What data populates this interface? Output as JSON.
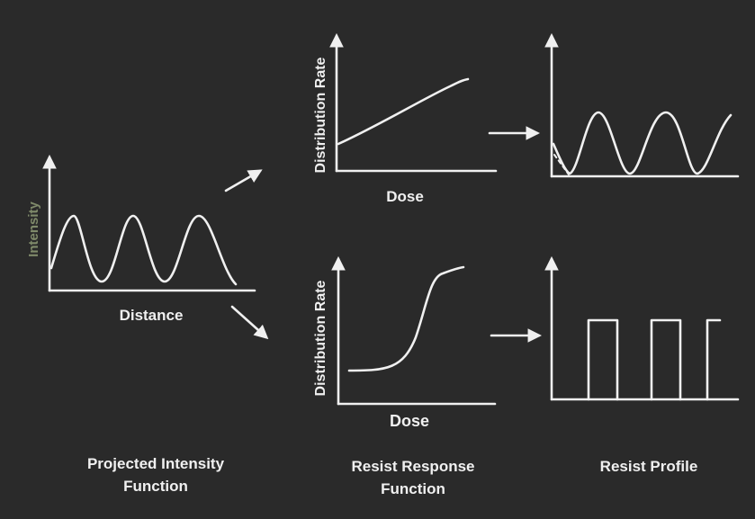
{
  "colors": {
    "background": "#2a2a2a",
    "stroke": "#f0f0f0",
    "ylabel_intensity": "#7f8a6a"
  },
  "intensity_panel": {
    "ylabel": "Intensity",
    "xlabel": "Distance"
  },
  "response_panels": [
    {
      "ylabel": "Distribution Rate",
      "xlabel": "Dose"
    },
    {
      "ylabel": "Distribution Rate",
      "xlabel": "Dose"
    }
  ],
  "captions": {
    "intensity": [
      "Projected Intensity",
      "Function"
    ],
    "response": [
      "Resist Response",
      "Function"
    ],
    "profile": [
      "Resist Profile"
    ]
  }
}
